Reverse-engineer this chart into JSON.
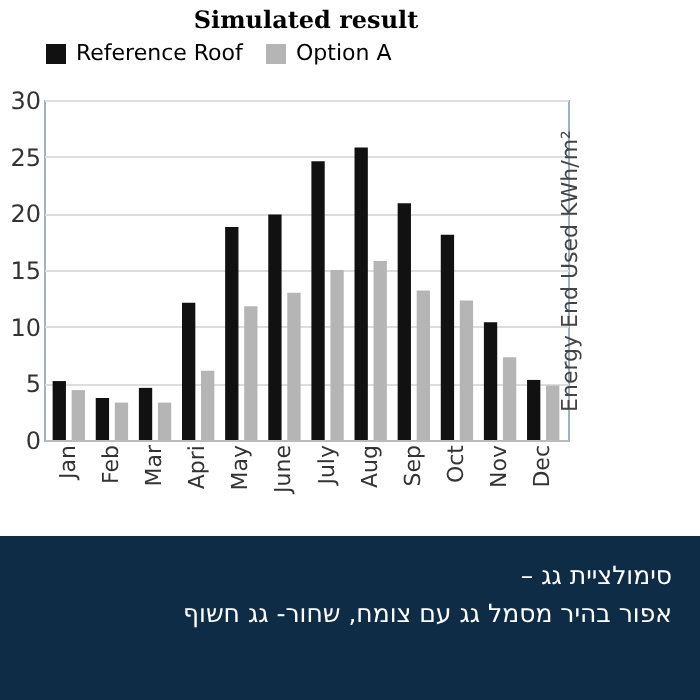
{
  "chart_data": {
    "type": "bar",
    "title": "Simulated result",
    "ylabel": "Energy End Used KWh/m²",
    "categories": [
      "Jan",
      "Feb",
      "Mar",
      "Apri",
      "May",
      "June",
      "July",
      "Aug",
      "Sep",
      "Oct",
      "Nov",
      "Dec"
    ],
    "series": [
      {
        "name": "Reference Roof",
        "color": "#111111",
        "values": [
          5.2,
          3.7,
          4.6,
          12.1,
          18.8,
          19.9,
          24.6,
          25.8,
          20.9,
          18.1,
          10.4,
          5.3
        ]
      },
      {
        "name": "Option A",
        "color": "#b5b5b5",
        "values": [
          4.4,
          3.3,
          3.3,
          6.1,
          11.8,
          13.0,
          15.0,
          15.8,
          13.2,
          12.3,
          7.3,
          4.8
        ]
      }
    ],
    "ylim": [
      0,
      30
    ],
    "yticks": [
      0,
      5,
      10,
      15,
      20,
      25,
      30
    ],
    "grid": "y",
    "legend": "top",
    "annotations": [
      "סימולציית גג –",
      "אפור בהיר מסמל גג עם צומח, שחור- גג חשוף"
    ]
  }
}
